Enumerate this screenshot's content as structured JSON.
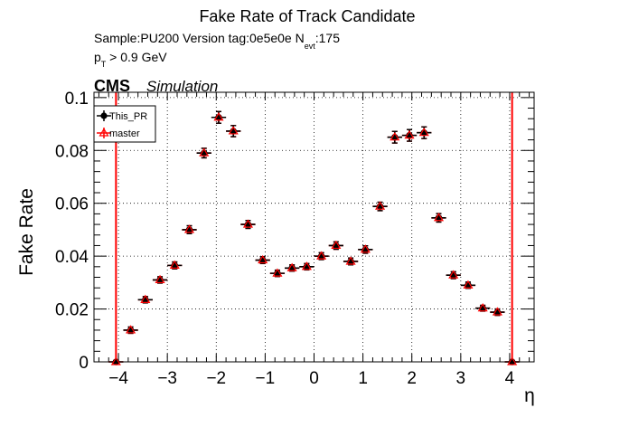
{
  "header": {
    "title": "Fake Rate of Track Candidate",
    "sample_text": "Sample:PU200   Version tag:0e5e0e  N",
    "nevt_sub": "evt",
    "nevt_value": ":175",
    "pt_p": "p",
    "pt_sub": "T",
    "pt_rest": " > 0.9 GeV",
    "cms": "CMS",
    "simulation": "Simulation"
  },
  "chart_data": {
    "type": "scatter",
    "title": "Fake Rate of Track Candidate",
    "xlabel": "η",
    "ylabel": "Fake Rate",
    "xlim": [
      -4.5,
      4.5
    ],
    "ylim": [
      0,
      0.102
    ],
    "grid": true,
    "legend_position": "top-left",
    "xticks": [
      -4,
      -3,
      -2,
      -1,
      0,
      1,
      2,
      3,
      4
    ],
    "xtick_labels": [
      "−4",
      "−3",
      "−2",
      "−1",
      "0",
      "1",
      "2",
      "3",
      "4"
    ],
    "yticks": [
      0,
      0.02,
      0.04,
      0.06,
      0.08,
      0.1
    ],
    "ytick_labels": [
      "0",
      "0.02",
      "0.04",
      "0.06",
      "0.08",
      "0.1"
    ],
    "x_bin_halfwidth": 0.15,
    "boundary_lines": [
      -4.05,
      4.05
    ],
    "series": [
      {
        "name": "This_PR",
        "color": "#000000",
        "marker": "filled-circle",
        "x": [
          -4.05,
          -3.75,
          -3.45,
          -3.15,
          -2.85,
          -2.55,
          -2.25,
          -1.95,
          -1.65,
          -1.35,
          -1.05,
          -0.75,
          -0.45,
          -0.15,
          0.15,
          0.45,
          0.75,
          1.05,
          1.35,
          1.65,
          1.95,
          2.25,
          2.55,
          2.85,
          3.15,
          3.45,
          3.75,
          4.05
        ],
        "y": [
          0.0,
          0.012,
          0.0235,
          0.031,
          0.0365,
          0.05,
          0.079,
          0.0925,
          0.0873,
          0.052,
          0.0385,
          0.0335,
          0.0355,
          0.036,
          0.04,
          0.044,
          0.038,
          0.0425,
          0.0588,
          0.085,
          0.0857,
          0.0867,
          0.0545,
          0.0328,
          0.029,
          0.0203,
          0.0188,
          0.0
        ],
        "yerr": [
          0.0,
          0.0012,
          0.0012,
          0.0012,
          0.0013,
          0.0015,
          0.0018,
          0.0022,
          0.0021,
          0.0015,
          0.0013,
          0.0012,
          0.0012,
          0.0012,
          0.0013,
          0.0014,
          0.0013,
          0.0014,
          0.0016,
          0.0022,
          0.0022,
          0.0022,
          0.0016,
          0.0013,
          0.0012,
          0.0011,
          0.0012,
          0.0
        ]
      },
      {
        "name": "master",
        "color": "#ff0000",
        "marker": "open-triangle",
        "x": [
          -4.05,
          -3.75,
          -3.45,
          -3.15,
          -2.85,
          -2.55,
          -2.25,
          -1.95,
          -1.65,
          -1.35,
          -1.05,
          -0.75,
          -0.45,
          -0.15,
          0.15,
          0.45,
          0.75,
          1.05,
          1.35,
          1.65,
          1.95,
          2.25,
          2.55,
          2.85,
          3.15,
          3.45,
          3.75,
          4.05
        ],
        "y": [
          0.0,
          0.012,
          0.0235,
          0.031,
          0.0365,
          0.05,
          0.079,
          0.0925,
          0.0873,
          0.052,
          0.0385,
          0.0335,
          0.0355,
          0.036,
          0.04,
          0.044,
          0.038,
          0.0425,
          0.0588,
          0.085,
          0.0857,
          0.0867,
          0.0545,
          0.0328,
          0.029,
          0.0203,
          0.0188,
          0.0
        ],
        "yerr": [
          0.0,
          0.0012,
          0.0012,
          0.0012,
          0.0013,
          0.0015,
          0.0018,
          0.0022,
          0.0021,
          0.0015,
          0.0013,
          0.0012,
          0.0012,
          0.0012,
          0.0013,
          0.0014,
          0.0013,
          0.0014,
          0.0016,
          0.0022,
          0.0022,
          0.0022,
          0.0016,
          0.0013,
          0.0012,
          0.0011,
          0.0012,
          0.0
        ]
      }
    ]
  }
}
